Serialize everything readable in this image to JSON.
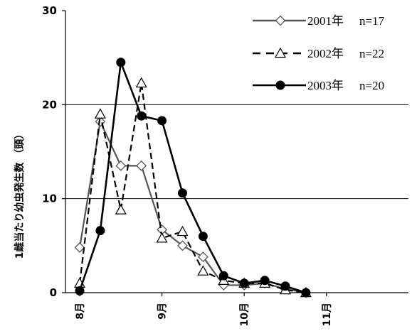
{
  "chart_data": {
    "type": "line",
    "ylabel": "1雌当たり幼虫発生数 （頭）",
    "xlabel": "",
    "ylim": [
      0,
      30
    ],
    "yticks": [
      "0",
      "10",
      "20",
      "30"
    ],
    "x_ticks": [
      "8月",
      "9月",
      "10月",
      "11月"
    ],
    "grid": "horizontal",
    "legend_position": "top-right",
    "series": [
      {
        "name": "2001年",
        "n_label": "n=17",
        "marker": "diamond",
        "dash": "solid",
        "color": "#555555",
        "x": [
          0,
          0.5,
          1,
          1.5,
          2,
          2.5,
          3,
          3.5,
          4,
          4.5,
          5,
          5.5,
          6,
          6.5,
          7
        ],
        "values": [
          4.8,
          18.2,
          13.5,
          13.5,
          6.7,
          5.0,
          3.8,
          0.8,
          0.8,
          1.0,
          0.4,
          0.0,
          null,
          null,
          null
        ]
      },
      {
        "name": "2002年",
        "n_label": "n=22",
        "marker": "triangle",
        "dash": "dashed",
        "color": "#000000",
        "x": [
          0,
          0.5,
          1,
          1.5,
          2,
          2.5,
          3,
          3.5,
          4,
          4.5,
          5,
          5.5,
          6,
          6.5,
          7
        ],
        "values": [
          1.0,
          19.0,
          8.8,
          22.3,
          5.8,
          6.5,
          2.3,
          1.3,
          1.0,
          1.0,
          0.3,
          0.0,
          null,
          null,
          null
        ]
      },
      {
        "name": "2003年",
        "n_label": "n=20",
        "marker": "circle",
        "dash": "solid",
        "color": "#000000",
        "x": [
          0,
          0.5,
          1,
          1.5,
          2,
          2.5,
          3,
          3.5,
          4,
          4.5,
          5,
          5.5,
          6,
          6.5,
          7
        ],
        "values": [
          0.2,
          6.6,
          24.5,
          18.8,
          18.3,
          10.6,
          6.0,
          1.8,
          1.0,
          1.3,
          0.7,
          0.0,
          null,
          null,
          null
        ]
      }
    ]
  }
}
